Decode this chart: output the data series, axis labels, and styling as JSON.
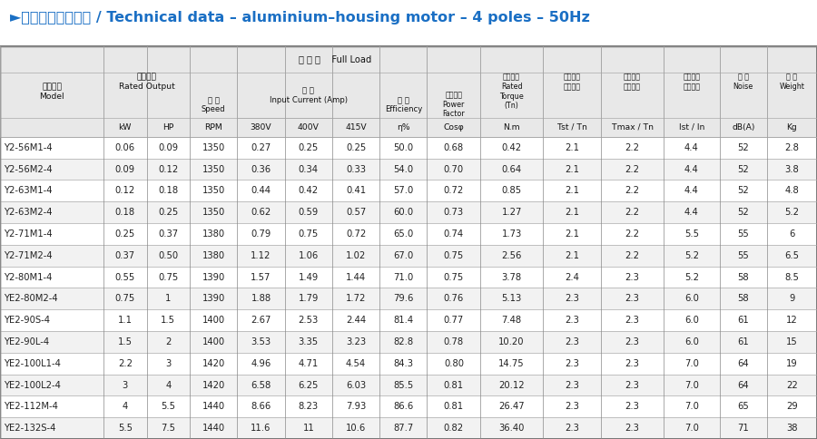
{
  "title": "►铝壳电机技术参数 / Technical data – aluminium–housing motor – 4 poles – 50Hz",
  "title_color": "#1a6fc4",
  "background_color": "#ffffff",
  "header_bg": "#e8e8e8",
  "border_color": "#aaaaaa",
  "text_color": "#222222",
  "col_widths": [
    1.2,
    0.5,
    0.5,
    0.55,
    0.55,
    0.55,
    0.55,
    0.55,
    0.62,
    0.72,
    0.68,
    0.72,
    0.65,
    0.55,
    0.58
  ],
  "rows": [
    [
      "Y2-56M1-4",
      "0.06",
      "0.09",
      "1350",
      "0.27",
      "0.25",
      "0.25",
      "50.0",
      "0.68",
      "0.42",
      "2.1",
      "2.2",
      "4.4",
      "52",
      "2.8"
    ],
    [
      "Y2-56M2-4",
      "0.09",
      "0.12",
      "1350",
      "0.36",
      "0.34",
      "0.33",
      "54.0",
      "0.70",
      "0.64",
      "2.1",
      "2.2",
      "4.4",
      "52",
      "3.8"
    ],
    [
      "Y2-63M1-4",
      "0.12",
      "0.18",
      "1350",
      "0.44",
      "0.42",
      "0.41",
      "57.0",
      "0.72",
      "0.85",
      "2.1",
      "2.2",
      "4.4",
      "52",
      "4.8"
    ],
    [
      "Y2-63M2-4",
      "0.18",
      "0.25",
      "1350",
      "0.62",
      "0.59",
      "0.57",
      "60.0",
      "0.73",
      "1.27",
      "2.1",
      "2.2",
      "4.4",
      "52",
      "5.2"
    ],
    [
      "Y2-71M1-4",
      "0.25",
      "0.37",
      "1380",
      "0.79",
      "0.75",
      "0.72",
      "65.0",
      "0.74",
      "1.73",
      "2.1",
      "2.2",
      "5.5",
      "55",
      "6"
    ],
    [
      "Y2-71M2-4",
      "0.37",
      "0.50",
      "1380",
      "1.12",
      "1.06",
      "1.02",
      "67.0",
      "0.75",
      "2.56",
      "2.1",
      "2.2",
      "5.2",
      "55",
      "6.5"
    ],
    [
      "Y2-80M1-4",
      "0.55",
      "0.75",
      "1390",
      "1.57",
      "1.49",
      "1.44",
      "71.0",
      "0.75",
      "3.78",
      "2.4",
      "2.3",
      "5.2",
      "58",
      "8.5"
    ],
    [
      "YE2-80M2-4",
      "0.75",
      "1",
      "1390",
      "1.88",
      "1.79",
      "1.72",
      "79.6",
      "0.76",
      "5.13",
      "2.3",
      "2.3",
      "6.0",
      "58",
      "9"
    ],
    [
      "YE2-90S-4",
      "1.1",
      "1.5",
      "1400",
      "2.67",
      "2.53",
      "2.44",
      "81.4",
      "0.77",
      "7.48",
      "2.3",
      "2.3",
      "6.0",
      "61",
      "12"
    ],
    [
      "YE2-90L-4",
      "1.5",
      "2",
      "1400",
      "3.53",
      "3.35",
      "3.23",
      "82.8",
      "0.78",
      "10.20",
      "2.3",
      "2.3",
      "6.0",
      "61",
      "15"
    ],
    [
      "YE2-100L1-4",
      "2.2",
      "3",
      "1420",
      "4.96",
      "4.71",
      "4.54",
      "84.3",
      "0.80",
      "14.75",
      "2.3",
      "2.3",
      "7.0",
      "64",
      "19"
    ],
    [
      "YE2-100L2-4",
      "3",
      "4",
      "1420",
      "6.58",
      "6.25",
      "6.03",
      "85.5",
      "0.81",
      "20.12",
      "2.3",
      "2.3",
      "7.0",
      "64",
      "22"
    ],
    [
      "YE2-112M-4",
      "4",
      "5.5",
      "1440",
      "8.66",
      "8.23",
      "7.93",
      "86.6",
      "0.81",
      "26.47",
      "2.3",
      "2.3",
      "7.0",
      "65",
      "29"
    ],
    [
      "YE2-132S-4",
      "5.5",
      "7.5",
      "1440",
      "11.6",
      "11",
      "10.6",
      "87.7",
      "0.82",
      "36.40",
      "2.3",
      "2.3",
      "7.0",
      "71",
      "38"
    ]
  ]
}
